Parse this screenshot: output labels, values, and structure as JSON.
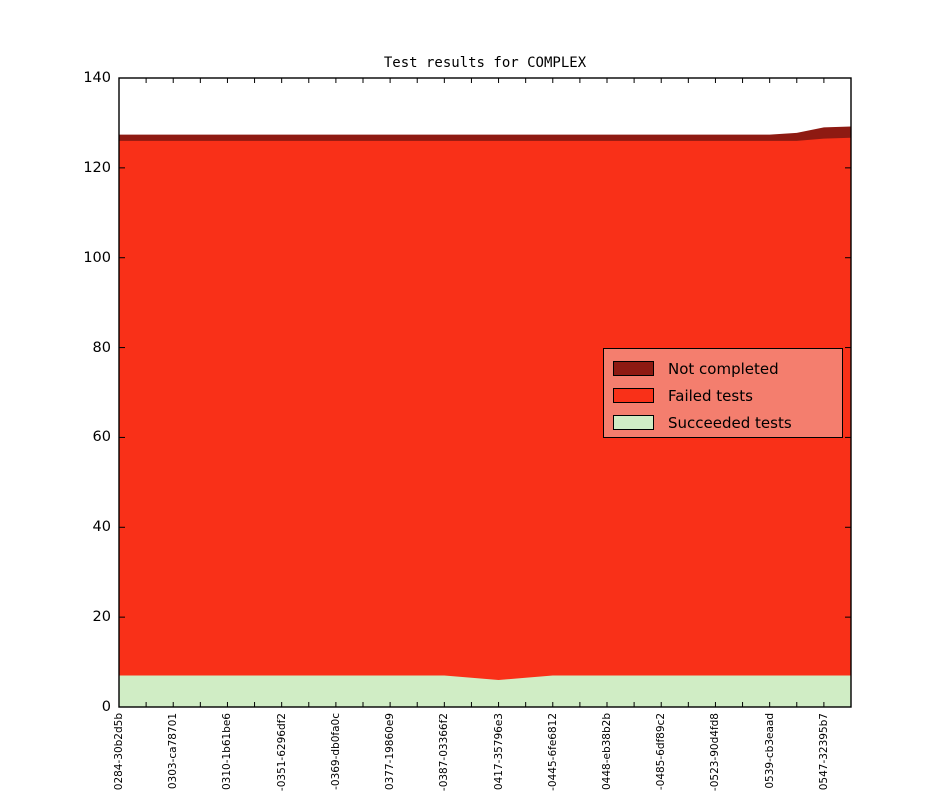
{
  "title": "Test results for COMPLEX",
  "colors": {
    "background": "#ffffff",
    "frame": "#000000",
    "not_completed": "#8e1a12",
    "failed": "#f93018",
    "succeeded": "#d0edc5",
    "legend_bg": "#f47e6e"
  },
  "legend": {
    "items": [
      {
        "label": "Not completed",
        "color": "#8e1a12"
      },
      {
        "label": "Failed tests",
        "color": "#f93018"
      },
      {
        "label": "Succeeded tests",
        "color": "#d0edc5"
      }
    ]
  },
  "chart_data": {
    "type": "area",
    "stacked": true,
    "title": "Test results for COMPLEX",
    "xlabel": "",
    "ylabel": "",
    "ylim": [
      0,
      140
    ],
    "y_ticks": [
      0,
      20,
      40,
      60,
      80,
      100,
      120,
      140
    ],
    "grid": false,
    "legend_position": "center right",
    "n_points": 28,
    "x_label_every": 2,
    "x_tick_labels": [
      "0284-30b2d5b",
      "0303-ca78701",
      "0310-1b61be6",
      "-0351-6296df2",
      "-0369-db0fa0c",
      "0377-19860e9",
      "-0387-03366f2",
      "0417-35796e3",
      "-0445-6fe6812",
      "0448-eb38b2b",
      "-0485-6df89c2",
      "-0523-90d4fd8",
      "0539-cb3eaad",
      "0547-32395b7"
    ],
    "series": [
      {
        "name": "Succeeded tests",
        "color": "#d0edc5",
        "values": [
          7,
          7,
          7,
          7,
          7,
          7,
          7,
          7,
          7,
          7,
          7,
          7,
          7,
          6.5,
          6,
          6.5,
          7,
          7,
          7,
          7,
          7,
          7,
          7,
          7,
          7,
          7,
          7,
          7
        ]
      },
      {
        "name": "Failed tests",
        "color": "#f93018",
        "values": [
          119,
          119,
          119,
          119,
          119,
          119,
          119,
          119,
          119,
          119,
          119,
          119,
          119,
          119.5,
          120,
          119.5,
          119,
          119,
          119,
          119,
          119,
          119,
          119,
          119,
          119,
          119,
          119.5,
          119.7
        ]
      },
      {
        "name": "Not completed",
        "color": "#8e1a12",
        "values": [
          1.4,
          1.4,
          1.4,
          1.4,
          1.4,
          1.4,
          1.4,
          1.4,
          1.4,
          1.4,
          1.4,
          1.4,
          1.4,
          1.4,
          1.4,
          1.4,
          1.4,
          1.4,
          1.4,
          1.4,
          1.4,
          1.4,
          1.4,
          1.4,
          1.4,
          1.8,
          2.5,
          2.5
        ]
      }
    ]
  }
}
